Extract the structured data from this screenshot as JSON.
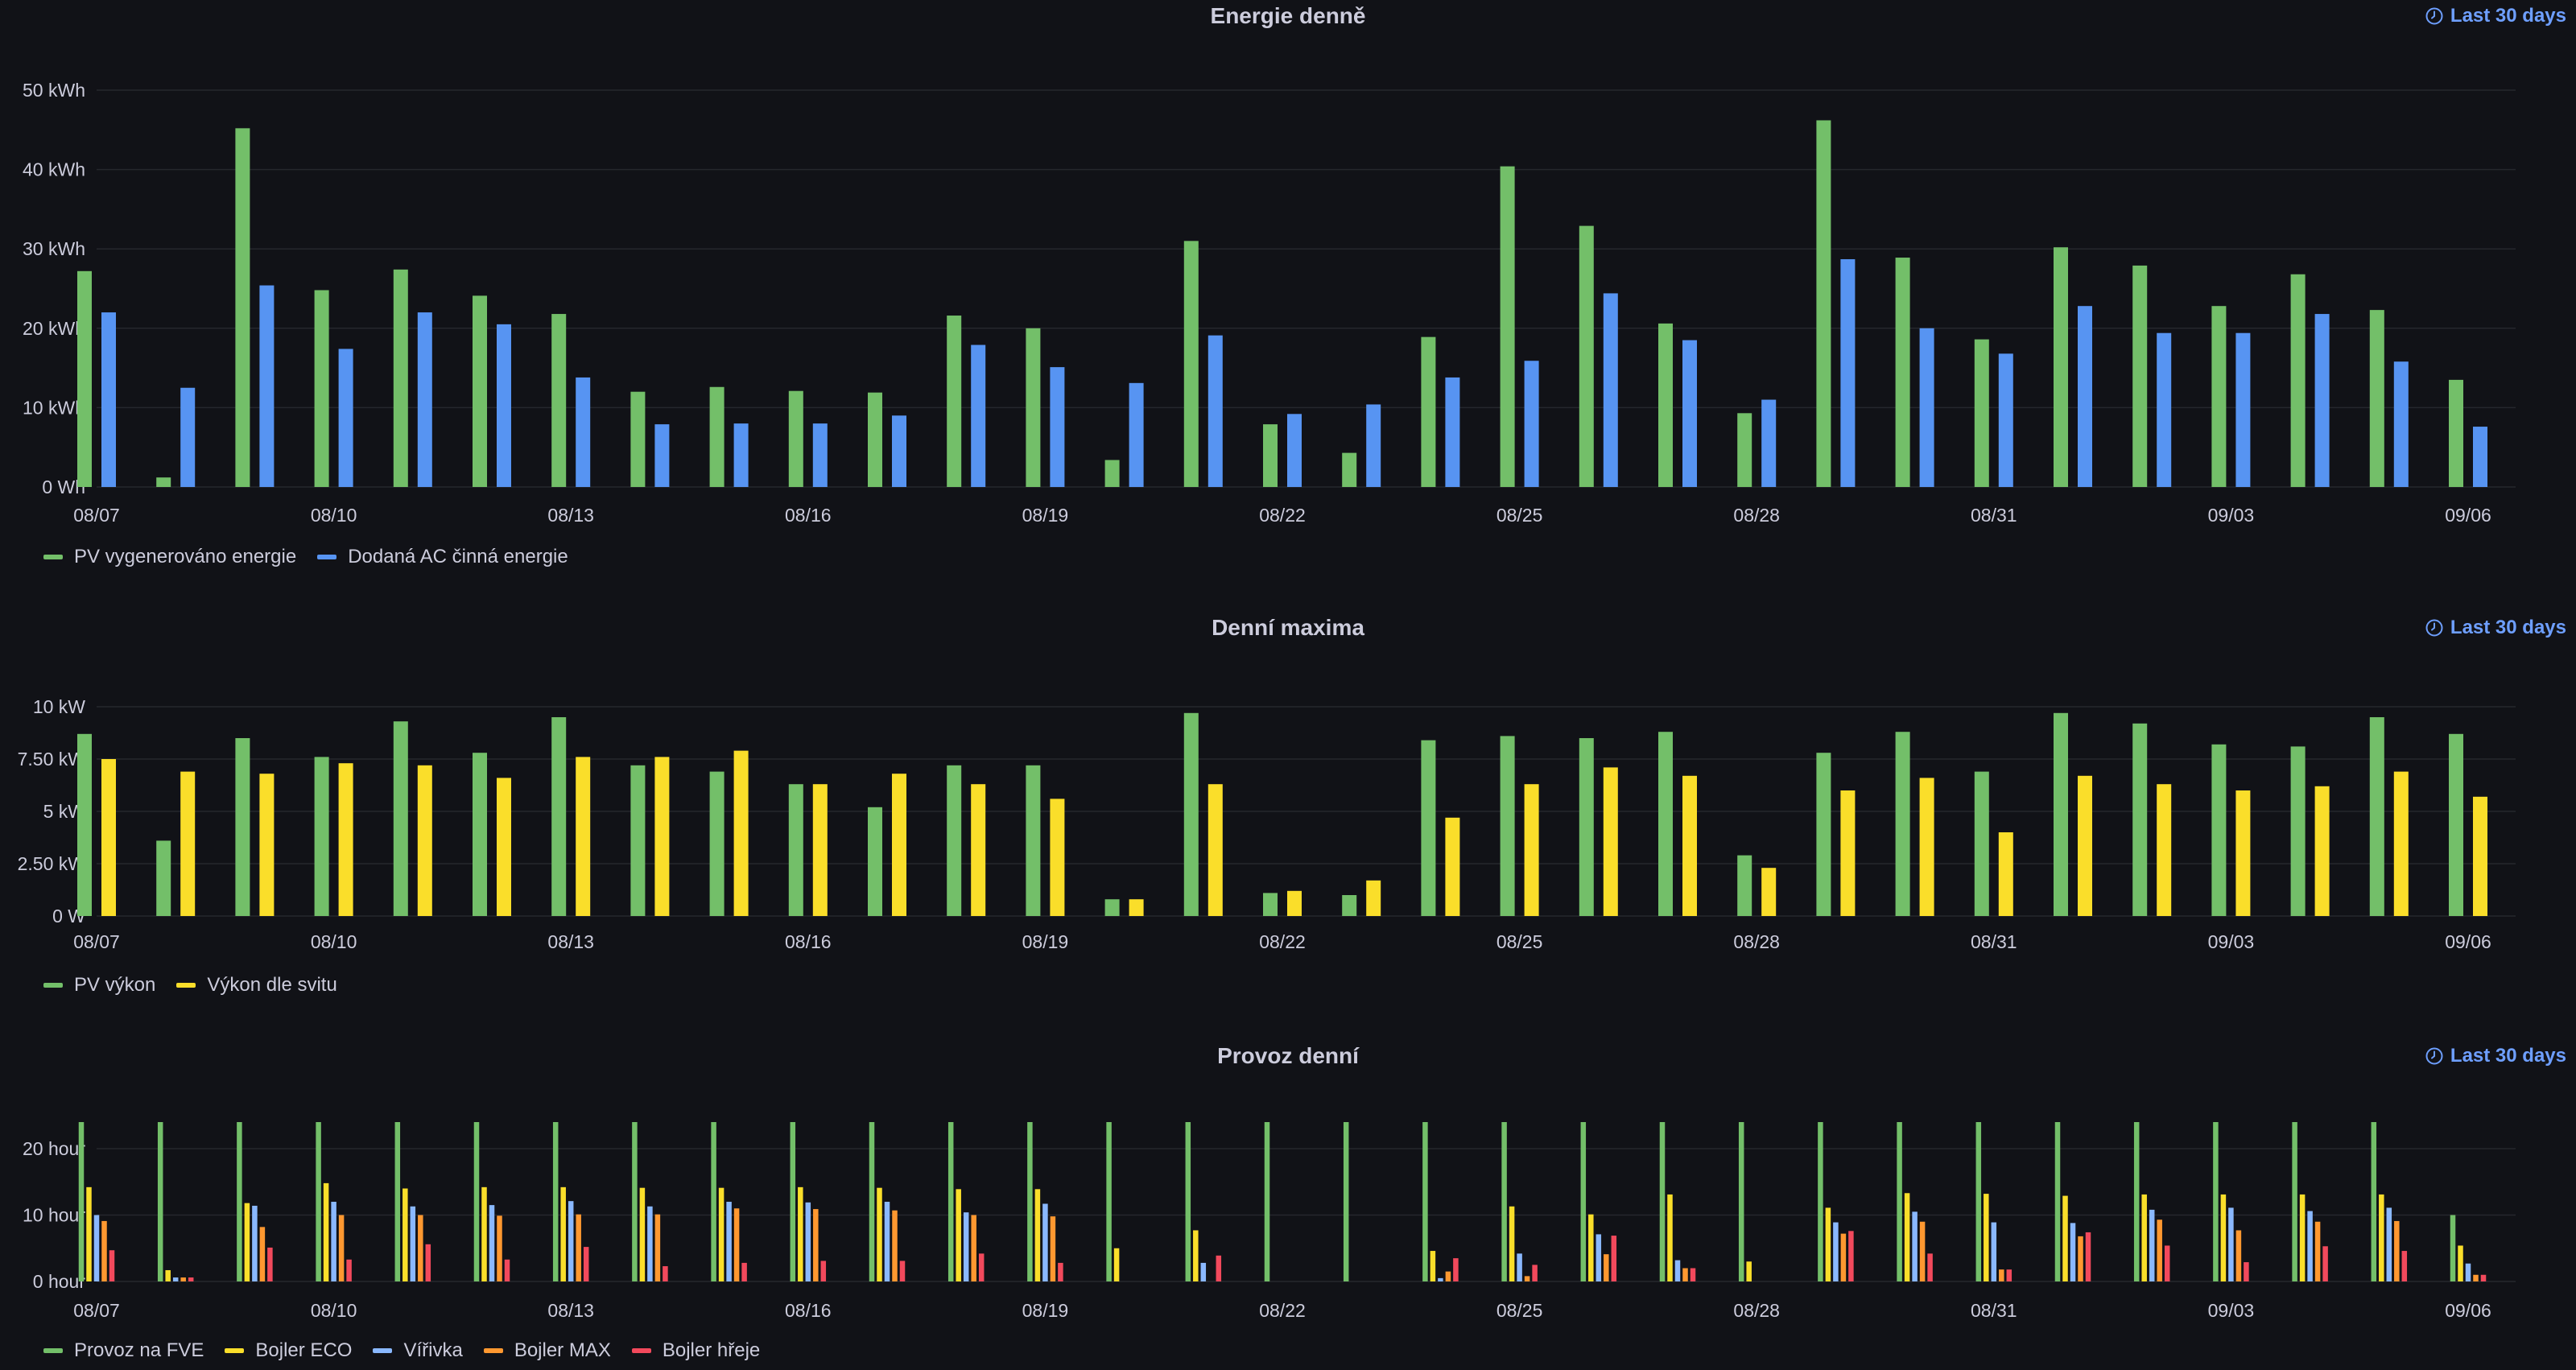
{
  "time_range": "Last 30 days",
  "chart_data": [
    {
      "type": "bar",
      "title": "Energie denně",
      "categories": [
        "08/07",
        "08/08",
        "08/09",
        "08/10",
        "08/11",
        "08/12",
        "08/13",
        "08/14",
        "08/15",
        "08/16",
        "08/17",
        "08/18",
        "08/19",
        "08/20",
        "08/21",
        "08/22",
        "08/23",
        "08/24",
        "08/25",
        "08/26",
        "08/27",
        "08/28",
        "08/29",
        "08/30",
        "08/31",
        "09/01",
        "09/02",
        "09/03",
        "09/04",
        "09/05",
        "09/06"
      ],
      "x_tick_labels": [
        "08/07",
        "08/10",
        "08/13",
        "08/16",
        "08/19",
        "08/22",
        "08/25",
        "08/28",
        "08/31",
        "09/03",
        "09/06"
      ],
      "y_ticks": [
        {
          "value": 0,
          "label": "0 Wh"
        },
        {
          "value": 10,
          "label": "10 kWh"
        },
        {
          "value": 20,
          "label": "20 kWh"
        },
        {
          "value": 30,
          "label": "30 kWh"
        },
        {
          "value": 40,
          "label": "40 kWh"
        },
        {
          "value": 50,
          "label": "50 kWh"
        }
      ],
      "ylim": [
        0,
        50
      ],
      "unit": "kWh",
      "grid": true,
      "legend_position": "bottom-left",
      "series": [
        {
          "name": "PV vygenerováno energie",
          "color": "#73bf69",
          "values": [
            27.2,
            1.2,
            45.2,
            24.8,
            27.4,
            24.1,
            21.8,
            12.0,
            12.6,
            12.1,
            11.9,
            21.6,
            20.0,
            3.4,
            31.0,
            7.9,
            4.3,
            18.9,
            40.4,
            32.9,
            20.6,
            9.3,
            46.2,
            28.9,
            18.6,
            30.2,
            27.9,
            22.8,
            26.8,
            22.3,
            13.5
          ]
        },
        {
          "name": "Dodaná AC činná energie",
          "color": "#5794f2",
          "values": [
            22.0,
            12.5,
            25.4,
            17.4,
            22.0,
            20.5,
            13.8,
            7.9,
            8.0,
            8.0,
            9.0,
            17.9,
            15.1,
            13.1,
            19.1,
            9.2,
            10.4,
            13.8,
            15.9,
            24.4,
            18.5,
            11.0,
            28.7,
            20.0,
            16.8,
            22.8,
            19.4,
            19.4,
            21.8,
            15.8,
            7.6
          ]
        }
      ]
    },
    {
      "type": "bar",
      "title": "Denní maxima",
      "categories": [
        "08/07",
        "08/08",
        "08/09",
        "08/10",
        "08/11",
        "08/12",
        "08/13",
        "08/14",
        "08/15",
        "08/16",
        "08/17",
        "08/18",
        "08/19",
        "08/20",
        "08/21",
        "08/22",
        "08/23",
        "08/24",
        "08/25",
        "08/26",
        "08/27",
        "08/28",
        "08/29",
        "08/30",
        "08/31",
        "09/01",
        "09/02",
        "09/03",
        "09/04",
        "09/05",
        "09/06"
      ],
      "x_tick_labels": [
        "08/07",
        "08/10",
        "08/13",
        "08/16",
        "08/19",
        "08/22",
        "08/25",
        "08/28",
        "08/31",
        "09/03",
        "09/06"
      ],
      "y_ticks": [
        {
          "value": 0,
          "label": "0 W"
        },
        {
          "value": 2.5,
          "label": "2.50 kW"
        },
        {
          "value": 5,
          "label": "5 kW"
        },
        {
          "value": 7.5,
          "label": "7.50 kW"
        },
        {
          "value": 10,
          "label": "10 kW"
        }
      ],
      "ylim": [
        0,
        10
      ],
      "unit": "kW",
      "grid": true,
      "legend_position": "bottom-left",
      "series": [
        {
          "name": "PV výkon",
          "color": "#73bf69",
          "values": [
            8.7,
            3.6,
            8.5,
            7.6,
            9.3,
            7.8,
            9.5,
            7.2,
            6.9,
            6.3,
            5.2,
            7.2,
            7.2,
            0.8,
            9.7,
            1.1,
            1.0,
            8.4,
            8.6,
            8.5,
            8.8,
            2.9,
            7.8,
            8.8,
            6.9,
            9.7,
            9.2,
            8.2,
            8.1,
            9.5,
            8.7
          ]
        },
        {
          "name": "Výkon dle svitu",
          "color": "#fade2a",
          "values": [
            7.5,
            6.9,
            6.8,
            7.3,
            7.2,
            6.6,
            7.6,
            7.6,
            7.9,
            6.3,
            6.8,
            6.3,
            5.6,
            0.8,
            6.3,
            1.2,
            1.7,
            4.7,
            6.3,
            7.1,
            6.7,
            2.3,
            6.0,
            6.6,
            4.0,
            6.7,
            6.3,
            6.0,
            6.2,
            6.9,
            5.7
          ]
        }
      ]
    },
    {
      "type": "bar",
      "title": "Provoz denní",
      "categories": [
        "08/07",
        "08/08",
        "08/09",
        "08/10",
        "08/11",
        "08/12",
        "08/13",
        "08/14",
        "08/15",
        "08/16",
        "08/17",
        "08/18",
        "08/19",
        "08/20",
        "08/21",
        "08/22",
        "08/23",
        "08/24",
        "08/25",
        "08/26",
        "08/27",
        "08/28",
        "08/29",
        "08/30",
        "08/31",
        "09/01",
        "09/02",
        "09/03",
        "09/04",
        "09/05",
        "09/06"
      ],
      "x_tick_labels": [
        "08/07",
        "08/10",
        "08/13",
        "08/16",
        "08/19",
        "08/22",
        "08/25",
        "08/28",
        "08/31",
        "09/03",
        "09/06"
      ],
      "y_ticks": [
        {
          "value": 0,
          "label": "0 hour"
        },
        {
          "value": 10,
          "label": "10 hour"
        },
        {
          "value": 20,
          "label": "20 hour"
        }
      ],
      "ylim": [
        0,
        24
      ],
      "unit": "hour",
      "grid": true,
      "legend_position": "bottom-left",
      "series": [
        {
          "name": "Provoz na FVE",
          "color": "#73bf69",
          "values": [
            24,
            24,
            24,
            24,
            24,
            24,
            24,
            24,
            24,
            24,
            24,
            24,
            24,
            24,
            24,
            24,
            24,
            24,
            24,
            24,
            24,
            24,
            24,
            24,
            24,
            24,
            24,
            24,
            24,
            24,
            10
          ]
        },
        {
          "name": "Bojler ECO",
          "color": "#fade2a",
          "values": [
            14.2,
            1.7,
            11.8,
            14.8,
            14.0,
            14.2,
            14.2,
            14.1,
            14.1,
            14.2,
            14.1,
            13.9,
            13.9,
            5.0,
            7.7,
            0,
            0,
            4.6,
            11.3,
            10.1,
            13.1,
            3.0,
            11.1,
            13.3,
            13.2,
            12.9,
            13.1,
            13.1,
            13.1,
            13.1,
            5.4
          ]
        },
        {
          "name": "Vířivka",
          "color": "#8ab8ff",
          "values": [
            10.0,
            0.6,
            11.4,
            12.0,
            11.3,
            11.5,
            12.1,
            11.3,
            12.0,
            11.9,
            12.0,
            10.4,
            11.7,
            0,
            2.8,
            0,
            0,
            0.5,
            4.2,
            7.1,
            3.2,
            0,
            8.9,
            10.5,
            8.9,
            8.8,
            10.8,
            11.1,
            10.6,
            11.1,
            2.7
          ]
        },
        {
          "name": "Bojler MAX",
          "color": "#ff9830",
          "values": [
            9.1,
            0.6,
            8.2,
            10.0,
            10.0,
            9.9,
            10.1,
            10.1,
            11.0,
            10.9,
            10.7,
            10.0,
            9.8,
            0,
            0,
            0,
            0,
            1.5,
            0.8,
            4.1,
            2.0,
            0,
            7.2,
            9.0,
            1.8,
            6.8,
            9.3,
            7.7,
            9.0,
            9.1,
            1.0
          ]
        },
        {
          "name": "Bojler hřeje",
          "color": "#f2495c",
          "values": [
            4.7,
            0.6,
            5.1,
            3.3,
            5.6,
            3.3,
            5.2,
            2.3,
            2.8,
            3.1,
            3.1,
            4.2,
            2.8,
            0,
            3.9,
            0,
            0,
            3.5,
            2.5,
            6.9,
            2.0,
            0,
            7.6,
            4.2,
            1.8,
            7.4,
            5.4,
            2.9,
            5.3,
            4.6,
            1.0
          ]
        }
      ]
    }
  ]
}
